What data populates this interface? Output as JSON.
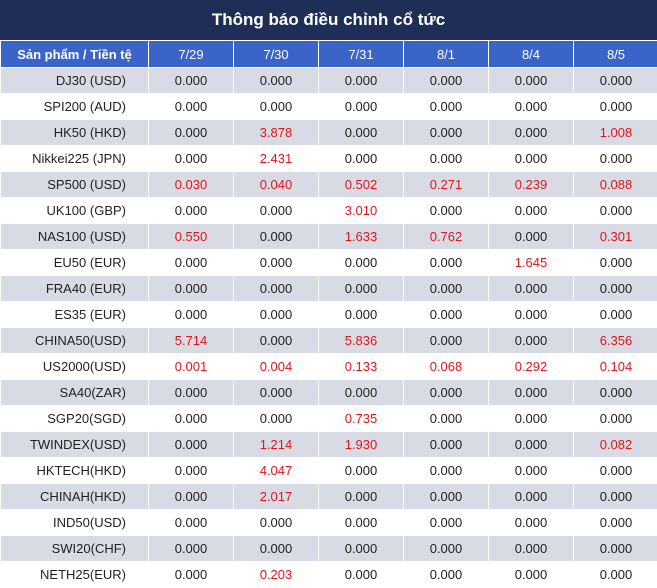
{
  "title": "Thông báo điều chỉnh cổ tức",
  "columns": [
    "Sản phẩm / Tiền tệ",
    "7/29",
    "7/30",
    "7/31",
    "8/1",
    "8/4",
    "8/5"
  ],
  "rows": [
    {
      "product": "DJ30 (USD)",
      "values": [
        "0.000",
        "0.000",
        "0.000",
        "0.000",
        "0.000",
        "0.000"
      ],
      "highlight": [
        false,
        false,
        false,
        false,
        false,
        false
      ]
    },
    {
      "product": "SPI200 (AUD)",
      "values": [
        "0.000",
        "0.000",
        "0.000",
        "0.000",
        "0.000",
        "0.000"
      ],
      "highlight": [
        false,
        false,
        false,
        false,
        false,
        false
      ]
    },
    {
      "product": "HK50 (HKD)",
      "values": [
        "0.000",
        "3.878",
        "0.000",
        "0.000",
        "0.000",
        "1.008"
      ],
      "highlight": [
        false,
        true,
        false,
        false,
        false,
        true
      ]
    },
    {
      "product": "Nikkei225 (JPN)",
      "values": [
        "0.000",
        "2.431",
        "0.000",
        "0.000",
        "0.000",
        "0.000"
      ],
      "highlight": [
        false,
        true,
        false,
        false,
        false,
        false
      ]
    },
    {
      "product": "SP500 (USD)",
      "values": [
        "0.030",
        "0.040",
        "0.502",
        "0.271",
        "0.239",
        "0.088"
      ],
      "highlight": [
        true,
        true,
        true,
        true,
        true,
        true
      ]
    },
    {
      "product": "UK100 (GBP)",
      "values": [
        "0.000",
        "0.000",
        "3.010",
        "0.000",
        "0.000",
        "0.000"
      ],
      "highlight": [
        false,
        false,
        true,
        false,
        false,
        false
      ]
    },
    {
      "product": "NAS100 (USD)",
      "values": [
        "0.550",
        "0.000",
        "1.633",
        "0.762",
        "0.000",
        "0.301"
      ],
      "highlight": [
        true,
        false,
        true,
        true,
        false,
        true
      ]
    },
    {
      "product": "EU50 (EUR)",
      "values": [
        "0.000",
        "0.000",
        "0.000",
        "0.000",
        "1.645",
        "0.000"
      ],
      "highlight": [
        false,
        false,
        false,
        false,
        true,
        false
      ]
    },
    {
      "product": "FRA40 (EUR)",
      "values": [
        "0.000",
        "0.000",
        "0.000",
        "0.000",
        "0.000",
        "0.000"
      ],
      "highlight": [
        false,
        false,
        false,
        false,
        false,
        false
      ]
    },
    {
      "product": "ES35 (EUR)",
      "values": [
        "0.000",
        "0.000",
        "0.000",
        "0.000",
        "0.000",
        "0.000"
      ],
      "highlight": [
        false,
        false,
        false,
        false,
        false,
        false
      ]
    },
    {
      "product": "CHINA50(USD)",
      "values": [
        "5.714",
        "0.000",
        "5.836",
        "0.000",
        "0.000",
        "6.356"
      ],
      "highlight": [
        true,
        false,
        true,
        false,
        false,
        true
      ]
    },
    {
      "product": "US2000(USD)",
      "values": [
        "0.001",
        "0.004",
        "0.133",
        "0.068",
        "0.292",
        "0.104"
      ],
      "highlight": [
        true,
        true,
        true,
        true,
        true,
        true
      ]
    },
    {
      "product": "SA40(ZAR)",
      "values": [
        "0.000",
        "0.000",
        "0.000",
        "0.000",
        "0.000",
        "0.000"
      ],
      "highlight": [
        false,
        false,
        false,
        false,
        false,
        false
      ]
    },
    {
      "product": "SGP20(SGD)",
      "values": [
        "0.000",
        "0.000",
        "0.735",
        "0.000",
        "0.000",
        "0.000"
      ],
      "highlight": [
        false,
        false,
        true,
        false,
        false,
        false
      ]
    },
    {
      "product": "TWINDEX(USD)",
      "values": [
        "0.000",
        "1.214",
        "1.930",
        "0.000",
        "0.000",
        "0.082"
      ],
      "highlight": [
        false,
        true,
        true,
        false,
        false,
        true
      ]
    },
    {
      "product": "HKTECH(HKD)",
      "values": [
        "0.000",
        "4.047",
        "0.000",
        "0.000",
        "0.000",
        "0.000"
      ],
      "highlight": [
        false,
        true,
        false,
        false,
        false,
        false
      ]
    },
    {
      "product": "CHINAH(HKD)",
      "values": [
        "0.000",
        "2.017",
        "0.000",
        "0.000",
        "0.000",
        "0.000"
      ],
      "highlight": [
        false,
        true,
        false,
        false,
        false,
        false
      ]
    },
    {
      "product": "IND50(USD)",
      "values": [
        "0.000",
        "0.000",
        "0.000",
        "0.000",
        "0.000",
        "0.000"
      ],
      "highlight": [
        false,
        false,
        false,
        false,
        false,
        false
      ]
    },
    {
      "product": "SWI20(CHF)",
      "values": [
        "0.000",
        "0.000",
        "0.000",
        "0.000",
        "0.000",
        "0.000"
      ],
      "highlight": [
        false,
        false,
        false,
        false,
        false,
        false
      ]
    },
    {
      "product": "NETH25(EUR)",
      "values": [
        "0.000",
        "0.203",
        "0.000",
        "0.000",
        "0.000",
        "0.000"
      ],
      "highlight": [
        false,
        true,
        false,
        false,
        false,
        false
      ]
    }
  ],
  "colors": {
    "title_bg": "#1e2e56",
    "header_bg": "#3a64c8",
    "row_shade": "#d9dbe4",
    "highlight_text": "#e0161c",
    "text": "#222222"
  }
}
